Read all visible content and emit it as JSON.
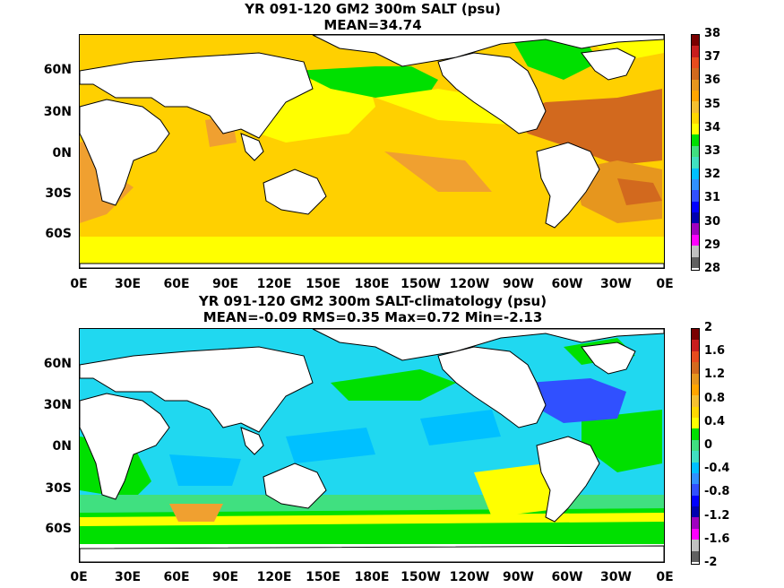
{
  "panels": [
    {
      "title": "YR 091-120 GM2 300m SALT (psu)",
      "subtitle": "MEAN=34.74",
      "lat_labels": [
        "60N",
        "30N",
        "0N",
        "30S",
        "60S"
      ],
      "lon_labels": [
        "0E",
        "30E",
        "60E",
        "90E",
        "120E",
        "150E",
        "180E",
        "150W",
        "120W",
        "90W",
        "60W",
        "30W",
        "0E"
      ],
      "colorbar_labels": [
        "38",
        "37",
        "36",
        "35",
        "34",
        "33",
        "32",
        "31",
        "30",
        "29",
        "28"
      ],
      "colorbar_colors": [
        "#7a0000",
        "#c81e1e",
        "#e64b1e",
        "#d2691e",
        "#e6961e",
        "#ffa500",
        "#f5c030",
        "#ffd700",
        "#ffff00",
        "#00e000",
        "#40e080",
        "#40e0c0",
        "#00c0ff",
        "#3090ff",
        "#3050ff",
        "#0000ff",
        "#0000b0",
        "#a000c0",
        "#ff00ff",
        "#c0c0c0",
        "#606060"
      ],
      "colors": {
        "ocean": "#ffd000",
        "land": "#ffffff"
      }
    },
    {
      "title": "YR 091-120 GM2 300m SALT-climatology (psu)",
      "subtitle": "MEAN=-0.09   RMS=0.35   Max=0.72   Min=-2.13",
      "lat_labels": [
        "60N",
        "30N",
        "0N",
        "30S",
        "60S"
      ],
      "lon_labels": [
        "0E",
        "30E",
        "60E",
        "90E",
        "120E",
        "150E",
        "180E",
        "150W",
        "120W",
        "90W",
        "60W",
        "30W",
        "0E"
      ],
      "colorbar_labels": [
        "2",
        "1.6",
        "1.2",
        "0.8",
        "0.4",
        "0",
        "-0.4",
        "-0.8",
        "-1.2",
        "-1.6",
        "-2"
      ],
      "colorbar_colors": [
        "#7a0000",
        "#c81e1e",
        "#e64b1e",
        "#d2691e",
        "#e6961e",
        "#ffa500",
        "#f5c030",
        "#ffd700",
        "#ffff00",
        "#00e000",
        "#40e080",
        "#40e0c0",
        "#00c0ff",
        "#3090ff",
        "#3050ff",
        "#0000ff",
        "#0000b0",
        "#a000c0",
        "#ff00ff",
        "#c0c0c0",
        "#606060"
      ],
      "colors": {
        "ocean": "#20d8f0",
        "land": "#ffffff"
      }
    }
  ]
}
